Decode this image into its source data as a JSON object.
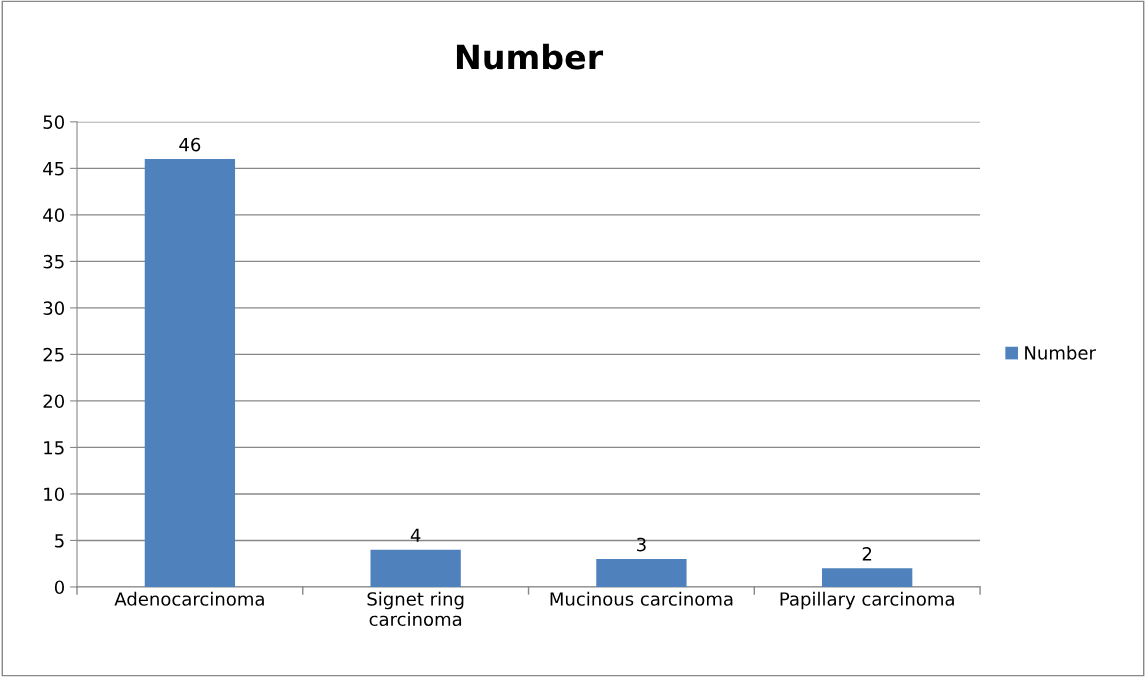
{
  "chart_data": {
    "type": "bar",
    "title": "Number",
    "categories": [
      "Adenocarcinoma",
      "Signet ring\ncarcinoma",
      "Mucinous carcinoma",
      "Papillary carcinoma"
    ],
    "series": [
      {
        "name": "Number",
        "color": "#4f81bd",
        "values": [
          46,
          4,
          3,
          2
        ]
      }
    ],
    "ylim": [
      0,
      50
    ],
    "yticks": [
      0,
      5,
      10,
      15,
      20,
      25,
      30,
      35,
      40,
      45,
      50
    ],
    "grid": "y",
    "legend": "right",
    "data_labels": true
  }
}
